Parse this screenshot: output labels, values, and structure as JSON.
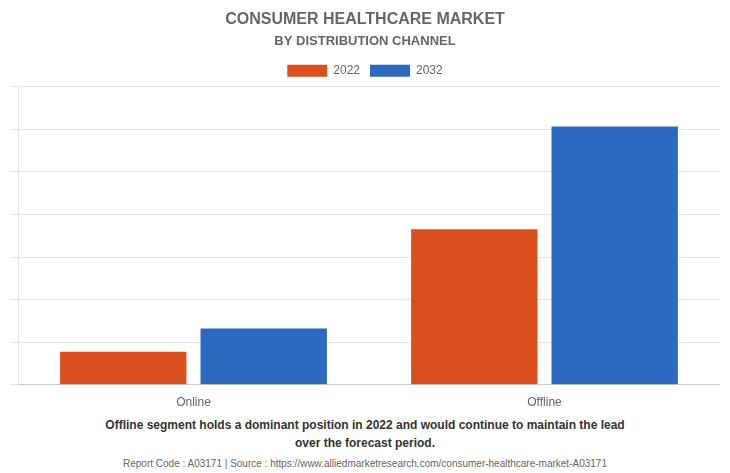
{
  "chart_data": {
    "type": "bar",
    "title": "CONSUMER HEALTHCARE MARKET",
    "subtitle": "BY DISTRIBUTION CHANNEL",
    "categories": [
      "Online",
      "Offline"
    ],
    "series": [
      {
        "name": "2022",
        "color": "#d94f1e",
        "values": [
          10,
          47
        ]
      },
      {
        "name": "2032",
        "color": "#2b6abf",
        "values": [
          17,
          78
        ]
      }
    ],
    "ylim": [
      0,
      90
    ],
    "yticks": [
      0,
      12.857142857142858,
      25.714285714285715,
      38.57142857142857,
      51.42857142857143,
      64.28571428571429,
      77.14285714285714,
      90
    ],
    "grid": true,
    "legend": "top",
    "tick_labels": "x",
    "annotation": "Offline segment holds a dominant position in 2022 and would continue to maintain the lead\nover the forecast period.",
    "footer": "Report Code : A03171  |  Source : https://www.alliedmarketresearch.com/consumer-healthcare-market-A03171"
  }
}
